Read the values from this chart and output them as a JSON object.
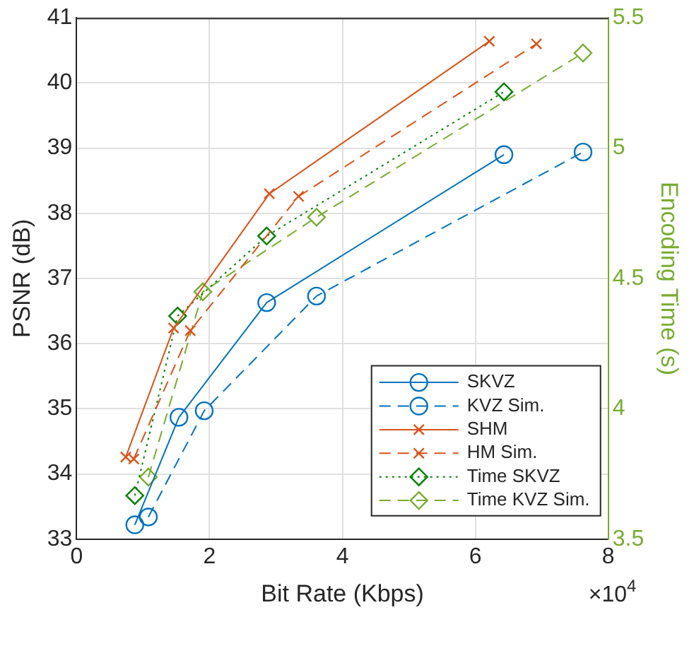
{
  "chart_data": {
    "type": "line",
    "xlabel": "Bit Rate (Kbps)",
    "ylabel": "PSNR (dB)",
    "y2label": "Encoding Time (s)",
    "xlim": [
      0,
      8
    ],
    "xticks": [
      0,
      2,
      4,
      6,
      8
    ],
    "ylim": [
      33,
      41
    ],
    "yticks": [
      33,
      34,
      35,
      36,
      37,
      38,
      39,
      40,
      41
    ],
    "y2lim": [
      3.5,
      5.5
    ],
    "y2ticks": [
      3.5,
      4,
      4.5,
      5,
      5.5
    ],
    "grid": true,
    "legend": "bottom right",
    "annotations": [
      "×10$^{4}$"
    ],
    "series": [
      {
        "name": "SKVZ",
        "color": "#0072bd",
        "marker": "circle",
        "line_style": "solid",
        "x": [
          0.876,
          1.54,
          2.86,
          6.43
        ],
        "values": [
          33.22,
          34.87,
          36.63,
          38.9
        ]
      },
      {
        "name": "KVZ Sim.",
        "color": "#0072bd",
        "marker": "circle",
        "line_style": "dashed",
        "x": [
          1.08,
          1.92,
          3.61,
          7.62
        ],
        "values": [
          33.34,
          34.97,
          36.73,
          38.94
        ]
      },
      {
        "name": "SHM",
        "color": "#d95319",
        "marker": "cross",
        "line_style": "solid",
        "x": [
          0.74,
          1.46,
          2.9,
          6.21
        ],
        "values": [
          34.26,
          36.24,
          38.3,
          40.64
        ]
      },
      {
        "name": "HM Sim.",
        "color": "#d95319",
        "marker": "cross",
        "line_style": "dashed",
        "x": [
          0.86,
          1.71,
          3.34,
          6.92
        ],
        "values": [
          34.23,
          36.2,
          38.26,
          40.6
        ]
      },
      {
        "name": "Time SKVZ",
        "color": "#008000",
        "marker": "diamond",
        "line_style": "dotted",
        "axis": "y2",
        "x": [
          0.876,
          1.52,
          2.86,
          6.43
        ],
        "values": [
          3.667,
          4.356,
          4.663,
          5.216
        ]
      },
      {
        "name": "Time KVZ Sim.",
        "color": "#77ac30",
        "marker": "diamond",
        "line_style": "dashed",
        "axis": "y2",
        "x": [
          1.08,
          1.9,
          3.61,
          7.62
        ],
        "values": [
          3.738,
          4.449,
          4.735,
          5.365
        ]
      }
    ]
  }
}
